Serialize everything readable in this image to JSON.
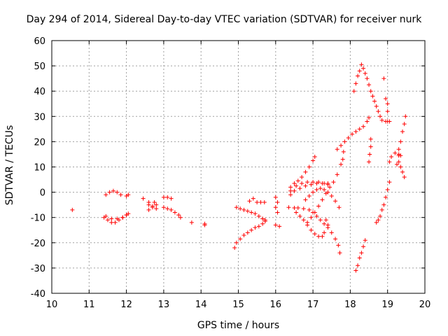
{
  "chart_data": {
    "type": "scatter",
    "title": "Day 294 of 2014, Sidereal Day-to-day VTEC variation (SDTVAR) for receiver nurk",
    "xlabel": "GPS time / hours",
    "ylabel": "SDTVAR / TECUs",
    "xlim": [
      10,
      20
    ],
    "ylim": [
      -40,
      60
    ],
    "x_ticks": [
      "10",
      "11",
      "12",
      "13",
      "14",
      "15",
      "16",
      "17",
      "18",
      "19",
      "20"
    ],
    "y_ticks": [
      "-40",
      "-30",
      "-20",
      "-10",
      "0",
      "10",
      "20",
      "30",
      "40",
      "50",
      "60"
    ],
    "grid": true,
    "marker": "+",
    "color": "#ff0000",
    "series": [
      {
        "values": [
          [
            10.55,
            -7
          ],
          [
            11.4,
            -10
          ],
          [
            11.5,
            -11
          ],
          [
            11.6,
            -12
          ],
          [
            11.7,
            -12
          ],
          [
            11.8,
            -11
          ],
          [
            11.9,
            -10
          ],
          [
            12.0,
            -9
          ],
          [
            12.05,
            -8.5
          ],
          [
            11.45,
            -9.5
          ],
          [
            11.6,
            -10.5
          ],
          [
            11.75,
            -10.5
          ],
          [
            11.9,
            -10
          ],
          [
            12.0,
            -9
          ],
          [
            11.45,
            -1
          ],
          [
            11.55,
            0
          ],
          [
            11.65,
            0.5
          ],
          [
            11.75,
            0
          ],
          [
            11.85,
            -1
          ],
          [
            12.0,
            -1.5
          ],
          [
            12.05,
            -1
          ],
          [
            12.45,
            -2.5
          ],
          [
            12.6,
            -4
          ],
          [
            12.7,
            -5.5
          ],
          [
            12.8,
            -6.5
          ],
          [
            12.6,
            -7
          ],
          [
            12.7,
            -6
          ],
          [
            12.8,
            -5
          ],
          [
            12.6,
            -5
          ],
          [
            12.75,
            -4
          ],
          [
            13.0,
            -2
          ],
          [
            13.1,
            -2
          ],
          [
            13.2,
            -2.5
          ],
          [
            13.0,
            -6
          ],
          [
            13.1,
            -6.5
          ],
          [
            13.2,
            -7
          ],
          [
            13.3,
            -8
          ],
          [
            13.4,
            -9
          ],
          [
            13.45,
            -10
          ],
          [
            13.75,
            -12
          ],
          [
            14.1,
            -13
          ],
          [
            14.1,
            -12.5
          ],
          [
            14.9,
            -22
          ],
          [
            14.95,
            -20
          ],
          [
            15.05,
            -18.5
          ],
          [
            15.15,
            -17
          ],
          [
            15.25,
            -16
          ],
          [
            15.35,
            -15
          ],
          [
            15.45,
            -14
          ],
          [
            15.55,
            -13.5
          ],
          [
            15.65,
            -12.5
          ],
          [
            15.72,
            -11
          ],
          [
            14.95,
            -6
          ],
          [
            15.05,
            -6.5
          ],
          [
            15.15,
            -7
          ],
          [
            15.25,
            -7.5
          ],
          [
            15.35,
            -8
          ],
          [
            15.45,
            -8.5
          ],
          [
            15.55,
            -9.5
          ],
          [
            15.65,
            -10.5
          ],
          [
            15.72,
            -11.5
          ],
          [
            15.5,
            -4
          ],
          [
            15.6,
            -4
          ],
          [
            15.7,
            -4
          ],
          [
            15.3,
            -3.5
          ],
          [
            15.4,
            -2.5
          ],
          [
            16.0,
            -2
          ],
          [
            16.05,
            -4
          ],
          [
            16.0,
            -6
          ],
          [
            16.05,
            -8
          ],
          [
            16.0,
            -13
          ],
          [
            16.1,
            -13.5
          ],
          [
            16.35,
            -6
          ],
          [
            16.5,
            -6.2
          ],
          [
            16.6,
            -6.2
          ],
          [
            16.75,
            -6.5
          ],
          [
            16.9,
            -7
          ],
          [
            17.0,
            -8
          ],
          [
            17.1,
            -9.5
          ],
          [
            17.2,
            -11
          ],
          [
            17.3,
            -12.5
          ],
          [
            17.4,
            -14
          ],
          [
            17.5,
            -16
          ],
          [
            17.6,
            -18.5
          ],
          [
            17.68,
            -21
          ],
          [
            17.72,
            -24
          ],
          [
            16.55,
            -8
          ],
          [
            16.65,
            -9.5
          ],
          [
            16.75,
            -11
          ],
          [
            16.85,
            -13
          ],
          [
            16.95,
            -15
          ],
          [
            17.05,
            -16.5
          ],
          [
            17.15,
            -17.5
          ],
          [
            17.25,
            -17.5
          ],
          [
            17.3,
            -16
          ],
          [
            16.4,
            2
          ],
          [
            16.5,
            3.5
          ],
          [
            16.6,
            4.5
          ],
          [
            16.7,
            6
          ],
          [
            16.8,
            8
          ],
          [
            16.9,
            10
          ],
          [
            17.0,
            12.5
          ],
          [
            17.05,
            14
          ],
          [
            16.4,
            -1
          ],
          [
            16.5,
            0.5
          ],
          [
            16.65,
            1.5
          ],
          [
            16.8,
            2.5
          ],
          [
            16.95,
            3
          ],
          [
            17.1,
            3.5
          ],
          [
            17.25,
            3.5
          ],
          [
            17.4,
            3.5
          ],
          [
            16.4,
            0.5
          ],
          [
            16.55,
            2.5
          ],
          [
            16.7,
            3.5
          ],
          [
            16.85,
            4
          ],
          [
            17.0,
            4
          ],
          [
            17.15,
            4
          ],
          [
            17.3,
            3.5
          ],
          [
            17.4,
            3
          ],
          [
            16.8,
            -3
          ],
          [
            16.9,
            -1.5
          ],
          [
            17.0,
            0
          ],
          [
            17.1,
            1
          ],
          [
            17.2,
            1.5
          ],
          [
            17.3,
            1
          ],
          [
            17.4,
            0
          ],
          [
            17.5,
            -1.5
          ],
          [
            17.6,
            -3.5
          ],
          [
            17.7,
            -6
          ],
          [
            16.85,
            -12
          ],
          [
            16.95,
            -10
          ],
          [
            17.05,
            -8
          ],
          [
            17.15,
            -5.5
          ],
          [
            17.25,
            -3
          ],
          [
            17.35,
            -0.5
          ],
          [
            17.45,
            2
          ],
          [
            17.55,
            4
          ],
          [
            17.65,
            7
          ],
          [
            17.75,
            11
          ],
          [
            17.8,
            13
          ],
          [
            17.82,
            16
          ],
          [
            17.35,
            -11
          ],
          [
            17.4,
            -13
          ],
          [
            17.65,
            17
          ],
          [
            17.75,
            18.5
          ],
          [
            17.85,
            20
          ],
          [
            17.95,
            21.5
          ],
          [
            18.05,
            23
          ],
          [
            18.15,
            24
          ],
          [
            18.25,
            25
          ],
          [
            18.35,
            26
          ],
          [
            18.45,
            28
          ],
          [
            18.5,
            29.5
          ],
          [
            18.1,
            40
          ],
          [
            18.15,
            43
          ],
          [
            18.2,
            46
          ],
          [
            18.25,
            48
          ],
          [
            18.3,
            50.5
          ],
          [
            18.35,
            49
          ],
          [
            18.4,
            47
          ],
          [
            18.45,
            45
          ],
          [
            18.5,
            42.5
          ],
          [
            18.55,
            40
          ],
          [
            18.6,
            38
          ],
          [
            18.65,
            36
          ],
          [
            18.7,
            34
          ],
          [
            18.75,
            32
          ],
          [
            18.8,
            30
          ],
          [
            18.85,
            28.5
          ],
          [
            18.95,
            28
          ],
          [
            19.0,
            28
          ],
          [
            19.05,
            28
          ],
          [
            18.9,
            45
          ],
          [
            18.5,
            12
          ],
          [
            18.52,
            15
          ],
          [
            18.55,
            18
          ],
          [
            18.55,
            21
          ],
          [
            18.15,
            -31
          ],
          [
            18.2,
            -29
          ],
          [
            18.25,
            -26
          ],
          [
            18.3,
            -24
          ],
          [
            18.35,
            -21.5
          ],
          [
            18.4,
            -19
          ],
          [
            18.7,
            -12
          ],
          [
            18.75,
            -11
          ],
          [
            18.8,
            -9.5
          ],
          [
            18.85,
            -7
          ],
          [
            18.9,
            -5
          ],
          [
            18.95,
            -2
          ],
          [
            19.0,
            1
          ],
          [
            19.05,
            4
          ],
          [
            18.95,
            37
          ],
          [
            19.0,
            35
          ],
          [
            19.0,
            32
          ],
          [
            19.05,
            12
          ],
          [
            19.1,
            14
          ],
          [
            19.2,
            15.5
          ],
          [
            19.3,
            14.5
          ],
          [
            19.35,
            14.5
          ],
          [
            19.3,
            15
          ],
          [
            19.25,
            11
          ],
          [
            19.3,
            12
          ],
          [
            19.3,
            17
          ],
          [
            19.35,
            20
          ],
          [
            19.4,
            24
          ],
          [
            19.45,
            27
          ],
          [
            19.48,
            30
          ],
          [
            19.35,
            10
          ],
          [
            19.4,
            8
          ],
          [
            19.45,
            6
          ]
        ]
      }
    ]
  }
}
